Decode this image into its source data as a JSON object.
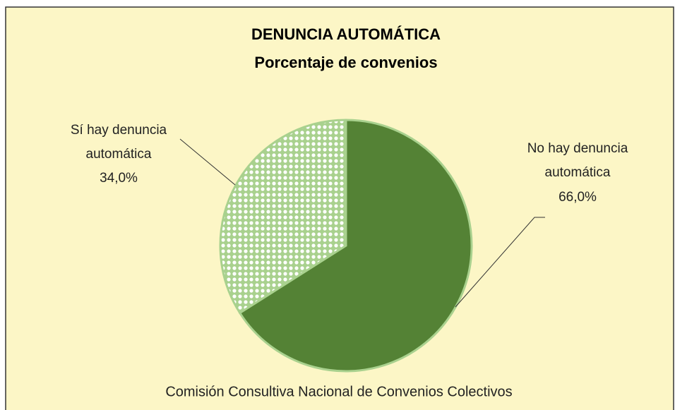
{
  "chart_data": {
    "type": "pie",
    "title": "DENUNCIA AUTOMÁTICA",
    "subtitle": "Porcentaje de convenios",
    "categories": [
      "No hay denuncia automática",
      "Sí hay denuncia automática"
    ],
    "values": [
      66.0,
      34.0
    ],
    "value_labels": [
      "66,0%",
      "34,0%"
    ],
    "colors": [
      "#548235",
      "#a9d18e"
    ],
    "source": "Comisión Consultiva Nacional de Convenios Colectivos"
  }
}
